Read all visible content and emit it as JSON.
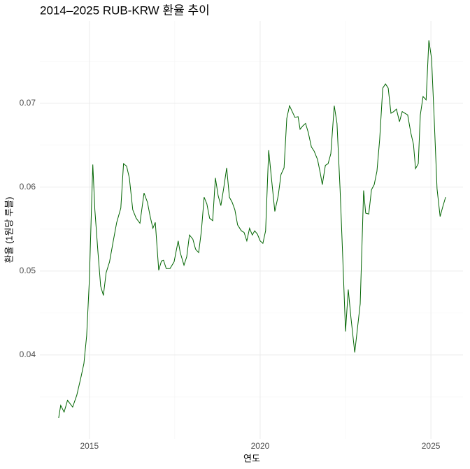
{
  "chart_data": {
    "type": "line",
    "title": "2014–2025 RUB-KRW 환율 추이",
    "x_label": "연도",
    "y_label": "환율 (1원당 루블)",
    "color": "#006400",
    "grid": true,
    "xlim": [
      2013.55,
      2025.94
    ],
    "ylim": [
      0.03,
      0.0798
    ],
    "xticks": [
      2015,
      2020,
      2025
    ],
    "yticks": [
      0.04,
      0.05,
      0.06,
      0.07
    ],
    "minor_xticks": [
      2017.5,
      2022.5
    ],
    "minor_yticks": [
      0.035,
      0.045,
      0.055,
      0.065,
      0.075
    ],
    "x": [
      2014.1,
      2014.16,
      2014.26,
      2014.36,
      2014.51,
      2014.63,
      2014.75,
      2014.84,
      2014.92,
      2015.0,
      2015.06,
      2015.1,
      2015.16,
      2015.25,
      2015.33,
      2015.41,
      2015.49,
      2015.59,
      2015.7,
      2015.8,
      2015.92,
      2016.0,
      2016.09,
      2016.17,
      2016.27,
      2016.37,
      2016.48,
      2016.6,
      2016.7,
      2016.78,
      2016.86,
      2016.93,
      2017.03,
      2017.11,
      2017.17,
      2017.25,
      2017.36,
      2017.48,
      2017.6,
      2017.66,
      2017.77,
      2017.85,
      2017.93,
      2018.03,
      2018.11,
      2018.2,
      2018.28,
      2018.36,
      2018.44,
      2018.52,
      2018.61,
      2018.69,
      2018.77,
      2018.85,
      2018.93,
      2019.02,
      2019.1,
      2019.18,
      2019.26,
      2019.34,
      2019.45,
      2019.53,
      2019.61,
      2019.69,
      2019.77,
      2019.84,
      2019.92,
      2020.0,
      2020.08,
      2020.16,
      2020.25,
      2020.33,
      2020.43,
      2020.53,
      2020.61,
      2020.7,
      2020.78,
      2020.86,
      2020.94,
      2021.02,
      2021.11,
      2021.17,
      2021.25,
      2021.33,
      2021.41,
      2021.5,
      2021.58,
      2021.68,
      2021.76,
      2021.82,
      2021.91,
      2021.99,
      2022.07,
      2022.17,
      2022.25,
      2022.34,
      2022.42,
      2022.5,
      2022.58,
      2022.66,
      2022.77,
      2022.85,
      2022.93,
      2023.03,
      2023.09,
      2023.18,
      2023.26,
      2023.34,
      2023.42,
      2023.5,
      2023.59,
      2023.67,
      2023.75,
      2023.83,
      2023.91,
      2023.99,
      2024.08,
      2024.16,
      2024.24,
      2024.32,
      2024.41,
      2024.49,
      2024.55,
      2024.63,
      2024.69,
      2024.77,
      2024.86,
      2024.94,
      2025.02,
      2025.1,
      2025.18,
      2025.27,
      2025.35,
      2025.43
    ],
    "values": [
      0.0325,
      0.034,
      0.0332,
      0.0346,
      0.0338,
      0.0352,
      0.0373,
      0.039,
      0.0423,
      0.049,
      0.0573,
      0.0627,
      0.0573,
      0.0523,
      0.0482,
      0.0471,
      0.0498,
      0.0511,
      0.0536,
      0.0558,
      0.0575,
      0.0628,
      0.0625,
      0.0611,
      0.0573,
      0.0563,
      0.0557,
      0.0593,
      0.0582,
      0.0565,
      0.0551,
      0.0558,
      0.0501,
      0.0512,
      0.0513,
      0.0503,
      0.0503,
      0.0511,
      0.0536,
      0.0522,
      0.0507,
      0.0517,
      0.0543,
      0.0538,
      0.0526,
      0.0522,
      0.0548,
      0.0588,
      0.058,
      0.0563,
      0.056,
      0.0611,
      0.059,
      0.0578,
      0.0598,
      0.0623,
      0.0588,
      0.0582,
      0.0573,
      0.0555,
      0.0548,
      0.0546,
      0.0536,
      0.0551,
      0.0543,
      0.0548,
      0.0544,
      0.0536,
      0.0533,
      0.0548,
      0.0644,
      0.0611,
      0.0571,
      0.059,
      0.0615,
      0.0623,
      0.0682,
      0.0697,
      0.069,
      0.0683,
      0.0684,
      0.0669,
      0.0673,
      0.0676,
      0.0665,
      0.0648,
      0.0643,
      0.0633,
      0.0617,
      0.0603,
      0.0626,
      0.0628,
      0.064,
      0.0697,
      0.0676,
      0.0598,
      0.0515,
      0.0428,
      0.0478,
      0.0444,
      0.0403,
      0.0432,
      0.0461,
      0.0596,
      0.0569,
      0.0568,
      0.0597,
      0.0603,
      0.0619,
      0.0657,
      0.0718,
      0.0723,
      0.0718,
      0.0688,
      0.069,
      0.0693,
      0.0678,
      0.069,
      0.0688,
      0.0686,
      0.0665,
      0.0651,
      0.0622,
      0.0628,
      0.0686,
      0.0708,
      0.0704,
      0.0775,
      0.0753,
      0.0678,
      0.0598,
      0.0565,
      0.0577,
      0.0588
    ]
  }
}
